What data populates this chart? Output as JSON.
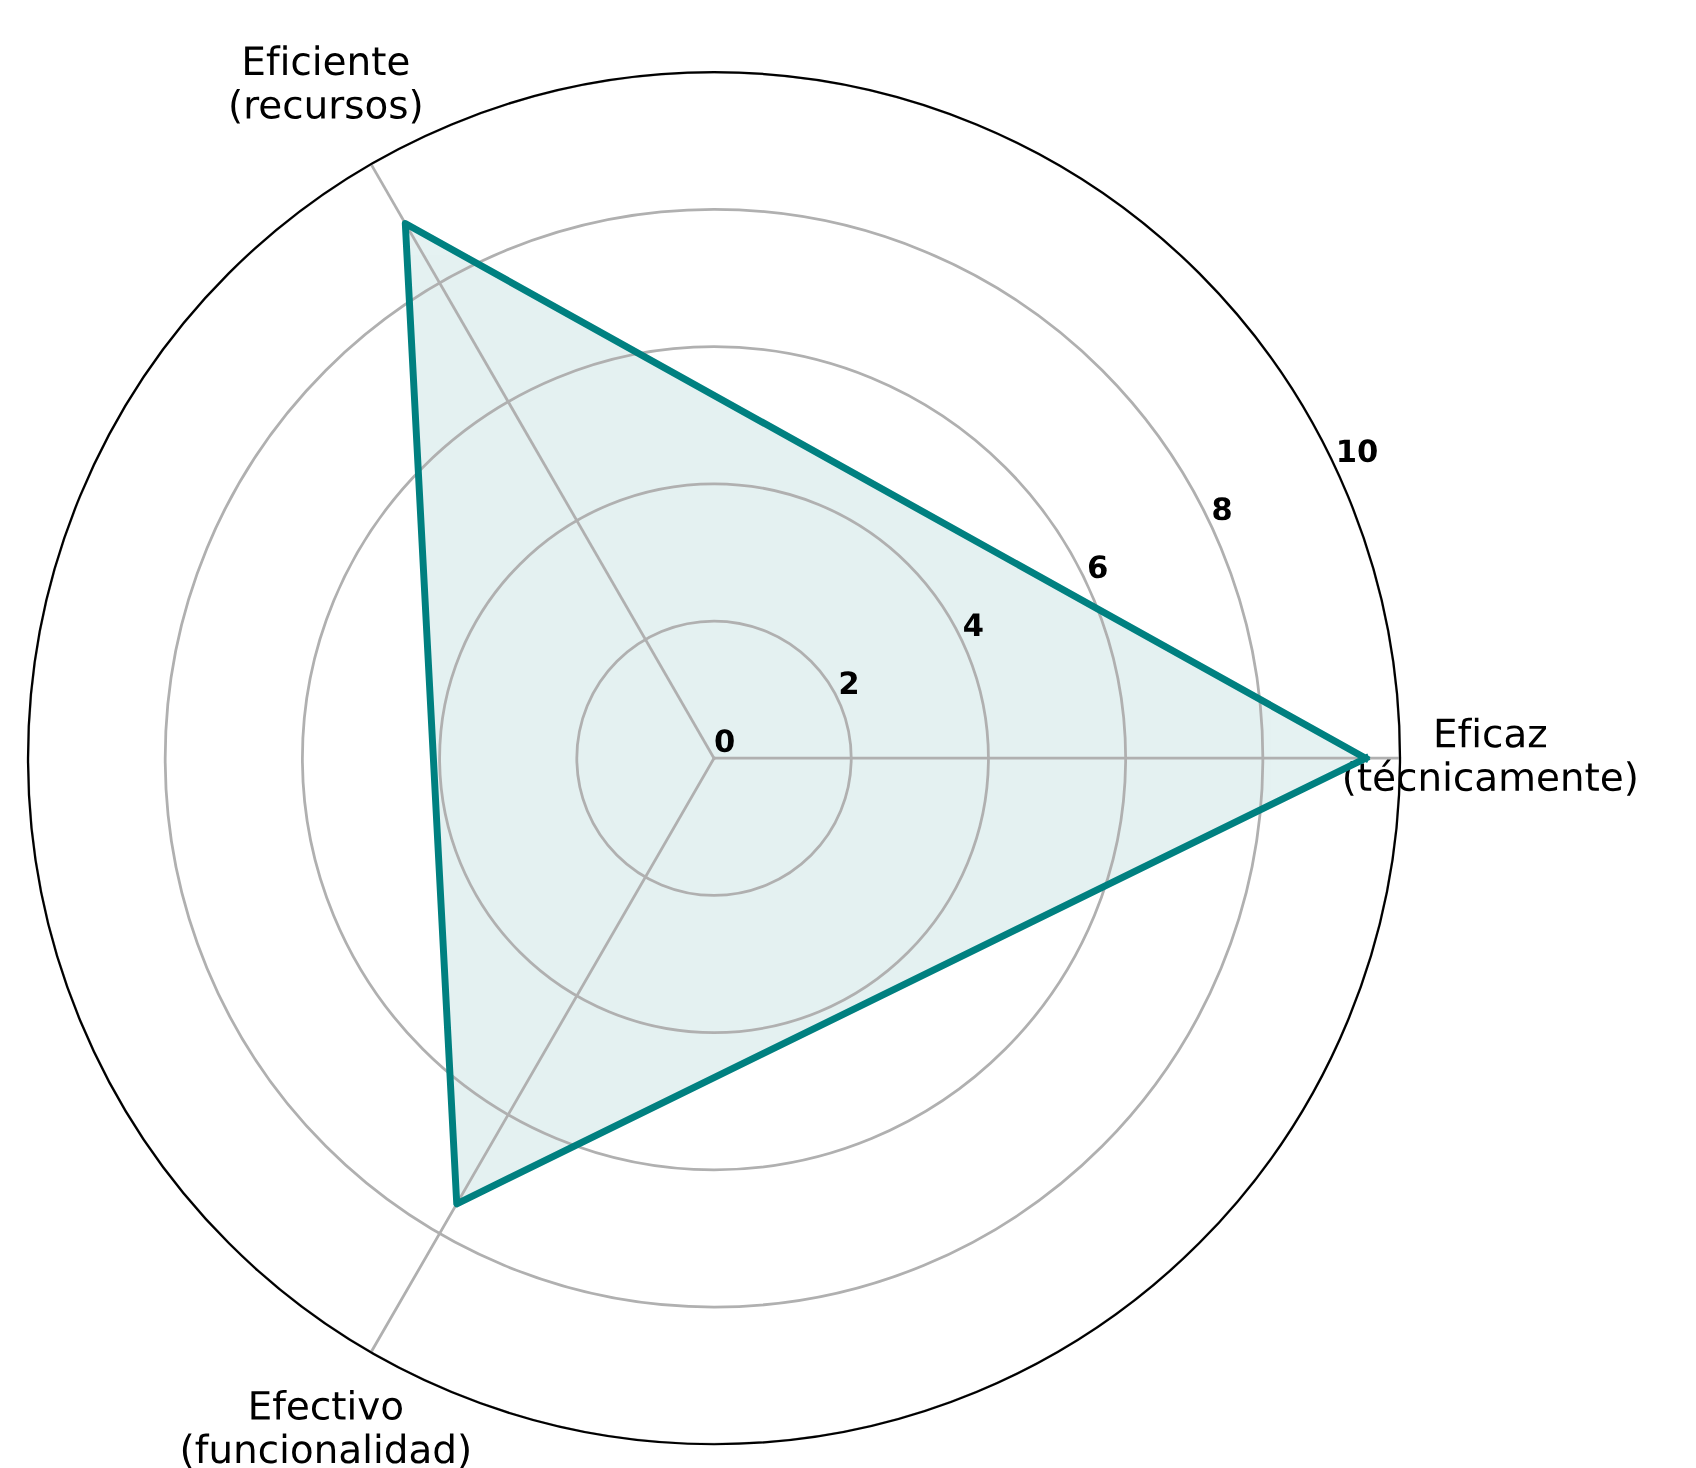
{
  "chart_data": {
    "type": "radar",
    "categories": [
      "Eficaz\n(técnicamente)",
      "Efectivo\n(funcionalidad)",
      "Eficiente\n(recursos)"
    ],
    "series": [
      {
        "color": "#008080",
        "values": [
          9.5,
          7.5,
          9.0
        ]
      }
    ],
    "ylim": [
      0,
      10
    ],
    "yticks": [
      0,
      2,
      4,
      6,
      8,
      10
    ],
    "grid": true,
    "marker": "none",
    "line_style": "solid"
  }
}
